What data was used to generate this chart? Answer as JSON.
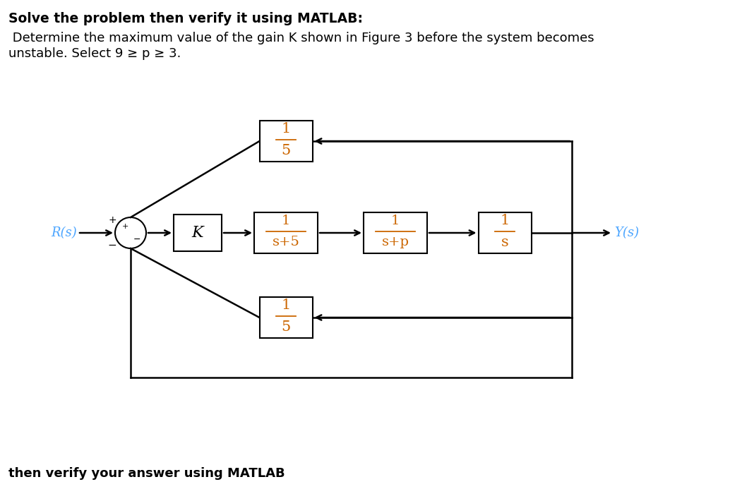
{
  "title_line1": "Solve the problem then verify it using MATLAB:",
  "body_line1": " Determine the maximum value of the gain K shown in Figure 3 before the system becomes",
  "body_line2": "unstable. Select 9 ≥ p ≥ 3.",
  "footer_text": "then verify your answer using MATLAB",
  "R_label": "R(s)",
  "Y_label": "Y(s)",
  "K_label": "K",
  "block1_den": "s+5",
  "block2_den": "s+p",
  "block3_den": "s",
  "fb_den": "5",
  "signal_color": "#4DA6FF",
  "box_color": "#000000",
  "text_color": "#000000",
  "fraction_color": "#CC6600",
  "bg_color": "#FFFFFF"
}
